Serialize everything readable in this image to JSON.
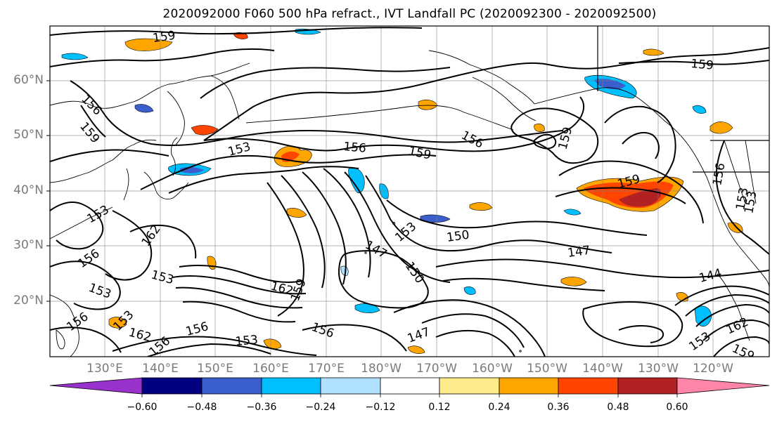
{
  "title": "2020092000 F060 500 hPa refract., IVT Landfall PC (2020092300 - 2020092500)",
  "lat_labels": [
    "60°N",
    "50°N",
    "40°N",
    "30°N",
    "20°N"
  ],
  "lon_labels": [
    "130°E",
    "140°E",
    "150°E",
    "160°E",
    "170°E",
    "180°W",
    "170°W",
    "160°W",
    "150°W",
    "140°W",
    "130°W",
    "120°W"
  ],
  "contour_labels": [
    "159",
    "156",
    "159",
    "153",
    "156",
    "159",
    "156",
    "159",
    "156",
    "159",
    "153",
    "153",
    "162",
    "156",
    "153",
    "153",
    "162",
    "159",
    "147",
    "153",
    "150",
    "150",
    "147",
    "144",
    "156",
    "153",
    "156",
    "147",
    "156",
    "162",
    "159",
    "153",
    "162",
    "159",
    "153",
    "156",
    "153"
  ],
  "colorbar": {
    "tick_labels": [
      "−0.60",
      "−0.48",
      "−0.36",
      "−0.24",
      "−0.12",
      "0.12",
      "0.24",
      "0.36",
      "0.48",
      "0.60"
    ],
    "colors": [
      "#9932cc",
      "#000080",
      "#3a5fcd",
      "#00bfff",
      "#b0e2ff",
      "#ffffff",
      "#ffeb8a",
      "#ffa500",
      "#ff4500",
      "#b22222",
      "#ff85a8"
    ]
  },
  "shade_colors": {
    "neg_light": "#b0e2ff",
    "neg_mid": "#00bfff",
    "neg_dark": "#3a5fcd",
    "pos_light": "#ffeb8a",
    "pos_mid": "#ffa500",
    "pos_dark": "#ff4500",
    "pos_darker": "#b22222"
  }
}
